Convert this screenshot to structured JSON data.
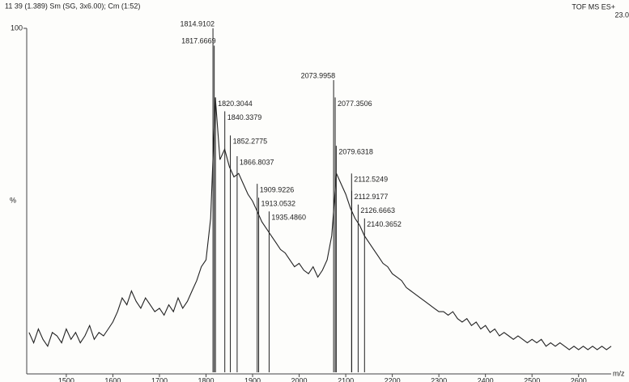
{
  "chart_data": {
    "type": "line",
    "title": "11 39 (1.389) Sm (SG, 3x6.00); Cm (1:52)",
    "instrument": "TOF MS ES+",
    "intensity_label": "23.0",
    "y_label": "%",
    "x_label": "m/z",
    "color": "#222222",
    "xlim": [
      1415,
      2670
    ],
    "ylim": [
      0,
      100
    ],
    "xticks": [
      1500,
      1600,
      1700,
      1800,
      1900,
      2000,
      2100,
      2200,
      2300,
      2400,
      2500,
      2600
    ],
    "yticks": [
      100
    ],
    "x": [
      1420,
      1430,
      1440,
      1450,
      1460,
      1470,
      1480,
      1490,
      1500,
      1510,
      1520,
      1530,
      1540,
      1550,
      1560,
      1570,
      1580,
      1590,
      1600,
      1610,
      1620,
      1630,
      1640,
      1650,
      1660,
      1670,
      1680,
      1690,
      1700,
      1710,
      1720,
      1730,
      1740,
      1750,
      1760,
      1770,
      1780,
      1790,
      1800,
      1810,
      1820,
      1830,
      1840,
      1850,
      1860,
      1870,
      1880,
      1890,
      1900,
      1910,
      1920,
      1930,
      1940,
      1950,
      1960,
      1970,
      1980,
      1990,
      2000,
      2010,
      2020,
      2030,
      2040,
      2050,
      2060,
      2070,
      2080,
      2090,
      2100,
      2110,
      2120,
      2130,
      2140,
      2150,
      2160,
      2170,
      2180,
      2190,
      2200,
      2210,
      2220,
      2230,
      2240,
      2250,
      2260,
      2270,
      2280,
      2290,
      2300,
      2310,
      2320,
      2330,
      2340,
      2350,
      2360,
      2370,
      2380,
      2390,
      2400,
      2410,
      2420,
      2430,
      2440,
      2450,
      2460,
      2470,
      2480,
      2490,
      2500,
      2510,
      2520,
      2530,
      2540,
      2550,
      2560,
      2570,
      2580,
      2590,
      2600,
      2610,
      2620,
      2630,
      2640,
      2650,
      2660,
      2670
    ],
    "values": [
      12,
      9,
      13,
      10,
      8,
      12,
      11,
      9,
      13,
      10,
      12,
      9,
      11,
      14,
      10,
      12,
      11,
      13,
      15,
      18,
      22,
      20,
      24,
      21,
      19,
      22,
      20,
      18,
      19,
      17,
      20,
      18,
      22,
      19,
      21,
      24,
      27,
      31,
      33,
      45,
      80,
      62,
      65,
      60,
      57,
      58,
      55,
      52,
      50,
      47,
      44,
      42,
      40,
      38,
      36,
      35,
      33,
      31,
      32,
      30,
      29,
      31,
      28,
      30,
      33,
      40,
      58,
      55,
      52,
      48,
      45,
      43,
      40,
      38,
      36,
      34,
      32,
      31,
      29,
      28,
      27,
      25,
      24,
      23,
      22,
      21,
      20,
      19,
      18,
      18,
      17,
      18,
      16,
      15,
      16,
      14,
      15,
      13,
      14,
      12,
      13,
      11,
      12,
      11,
      10,
      11,
      10,
      9,
      10,
      9,
      10,
      8,
      9,
      8,
      9,
      8,
      7,
      8,
      7,
      8,
      7,
      8,
      7,
      8,
      7,
      8
    ],
    "peaks": [
      {
        "value": 1814.9102,
        "label": "1814.9102",
        "intensity": 100
      },
      {
        "value": 1817.6669,
        "label": "1817.6669",
        "intensity": 95
      },
      {
        "value": 1820.3044,
        "label": "1820.3044",
        "intensity": 80
      },
      {
        "value": 1840.3379,
        "label": "1840.3379",
        "intensity": 76
      },
      {
        "value": 1852.2775,
        "label": "1852.2775",
        "intensity": 69
      },
      {
        "value": 1866.8037,
        "label": "1866.8037",
        "intensity": 63
      },
      {
        "value": 1909.9226,
        "label": "1909.9226",
        "intensity": 55
      },
      {
        "value": 1913.0532,
        "label": "1913.0532",
        "intensity": 51
      },
      {
        "value": 1935.486,
        "label": "1935.4860",
        "intensity": 47
      },
      {
        "value": 2073.9958,
        "label": "2073.9958",
        "intensity": 85
      },
      {
        "value": 2077.3506,
        "label": "2077.3506",
        "intensity": 80
      },
      {
        "value": 2079.6318,
        "label": "2079.6318",
        "intensity": 66
      },
      {
        "value": 2112.5249,
        "label": "2112.5249",
        "intensity": 58
      },
      {
        "value": 2112.9177,
        "label": "2112.9177",
        "intensity": 53
      },
      {
        "value": 2126.6663,
        "label": "2126.6663",
        "intensity": 49
      },
      {
        "value": 2140.3652,
        "label": "2140.3652",
        "intensity": 45
      }
    ]
  }
}
